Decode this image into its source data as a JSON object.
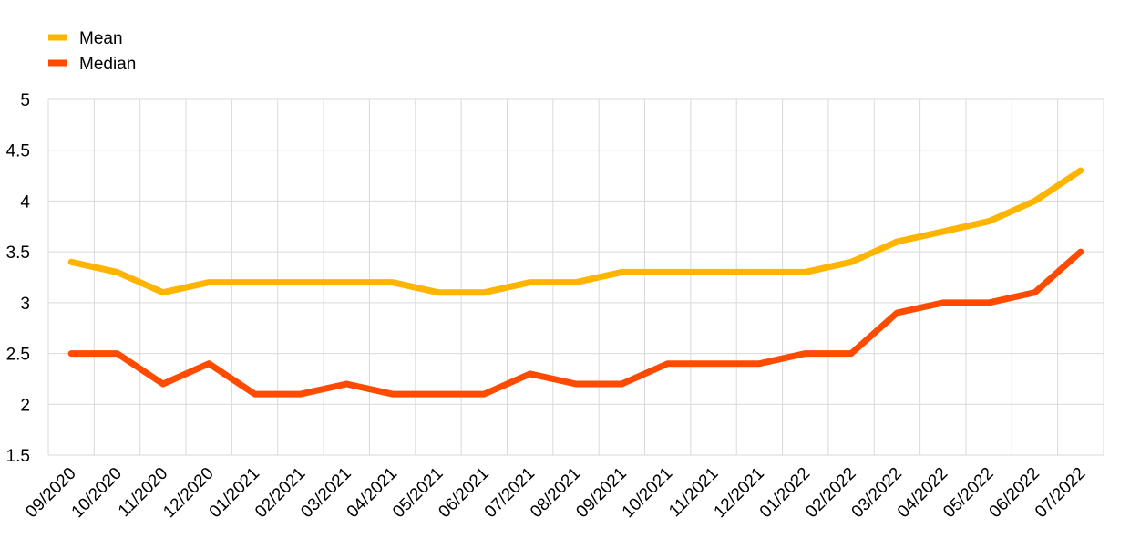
{
  "chart_data": {
    "type": "line",
    "title": "",
    "xlabel": "",
    "ylabel": "",
    "categories": [
      "09/2020",
      "10/2020",
      "11/2020",
      "12/2020",
      "01/2021",
      "02/2021",
      "03/2021",
      "04/2021",
      "05/2021",
      "06/2021",
      "07/2021",
      "08/2021",
      "09/2021",
      "10/2021",
      "11/2021",
      "12/2021",
      "01/2022",
      "02/2022",
      "03/2022",
      "04/2022",
      "05/2022",
      "06/2022",
      "07/2022"
    ],
    "series": [
      {
        "name": "Mean",
        "color": "#FFB400",
        "values": [
          3.4,
          3.3,
          3.1,
          3.2,
          3.2,
          3.2,
          3.2,
          3.2,
          3.1,
          3.1,
          3.2,
          3.2,
          3.3,
          3.3,
          3.3,
          3.3,
          3.3,
          3.4,
          3.6,
          3.7,
          3.8,
          4.0,
          4.3
        ]
      },
      {
        "name": "Median",
        "color": "#FF4B00",
        "values": [
          2.5,
          2.5,
          2.2,
          2.4,
          2.1,
          2.1,
          2.2,
          2.1,
          2.1,
          2.1,
          2.3,
          2.2,
          2.2,
          2.4,
          2.4,
          2.4,
          2.5,
          2.5,
          2.9,
          3.0,
          3.0,
          3.1,
          3.5
        ]
      }
    ],
    "ylim": [
      1.5,
      5
    ],
    "yticks": [
      "1.5",
      "2",
      "2.5",
      "3",
      "3.5",
      "4",
      "4.5",
      "5"
    ],
    "grid": true,
    "legend_position": "top-left"
  }
}
